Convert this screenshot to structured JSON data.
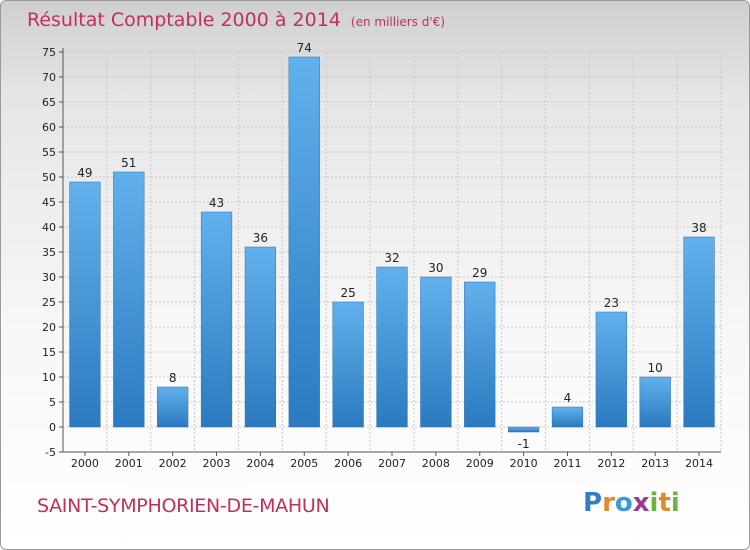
{
  "header": {
    "title": "Résultat Comptable 2000 à 2014",
    "subtitle": "(en milliers d'€)"
  },
  "footer": {
    "commune": "SAINT-SYMPHORIEN-DE-MAHUN",
    "logo_text": "Proxiti"
  },
  "colors": {
    "bar": "#3d8fd1",
    "title": "#c0305a"
  },
  "chart_data": {
    "type": "bar",
    "title": "Résultat Comptable 2000 à 2014",
    "subtitle": "(en milliers d'€)",
    "categories": [
      "2000",
      "2001",
      "2002",
      "2003",
      "2004",
      "2005",
      "2006",
      "2007",
      "2008",
      "2009",
      "2010",
      "2011",
      "2012",
      "2013",
      "2014"
    ],
    "values": [
      49,
      51,
      8,
      43,
      36,
      74,
      25,
      32,
      30,
      29,
      -1,
      4,
      23,
      10,
      38
    ],
    "labels": [
      "49",
      "51",
      "8",
      "43",
      "36",
      "74",
      "25",
      "32",
      "30",
      "29",
      "-1",
      "4",
      "23",
      "10",
      "38"
    ],
    "yticks": [
      -5,
      0,
      5,
      10,
      15,
      20,
      25,
      30,
      35,
      40,
      45,
      50,
      55,
      60,
      65,
      70,
      75
    ],
    "ylim": [
      -5,
      75
    ],
    "grid": true,
    "legend": "none"
  }
}
